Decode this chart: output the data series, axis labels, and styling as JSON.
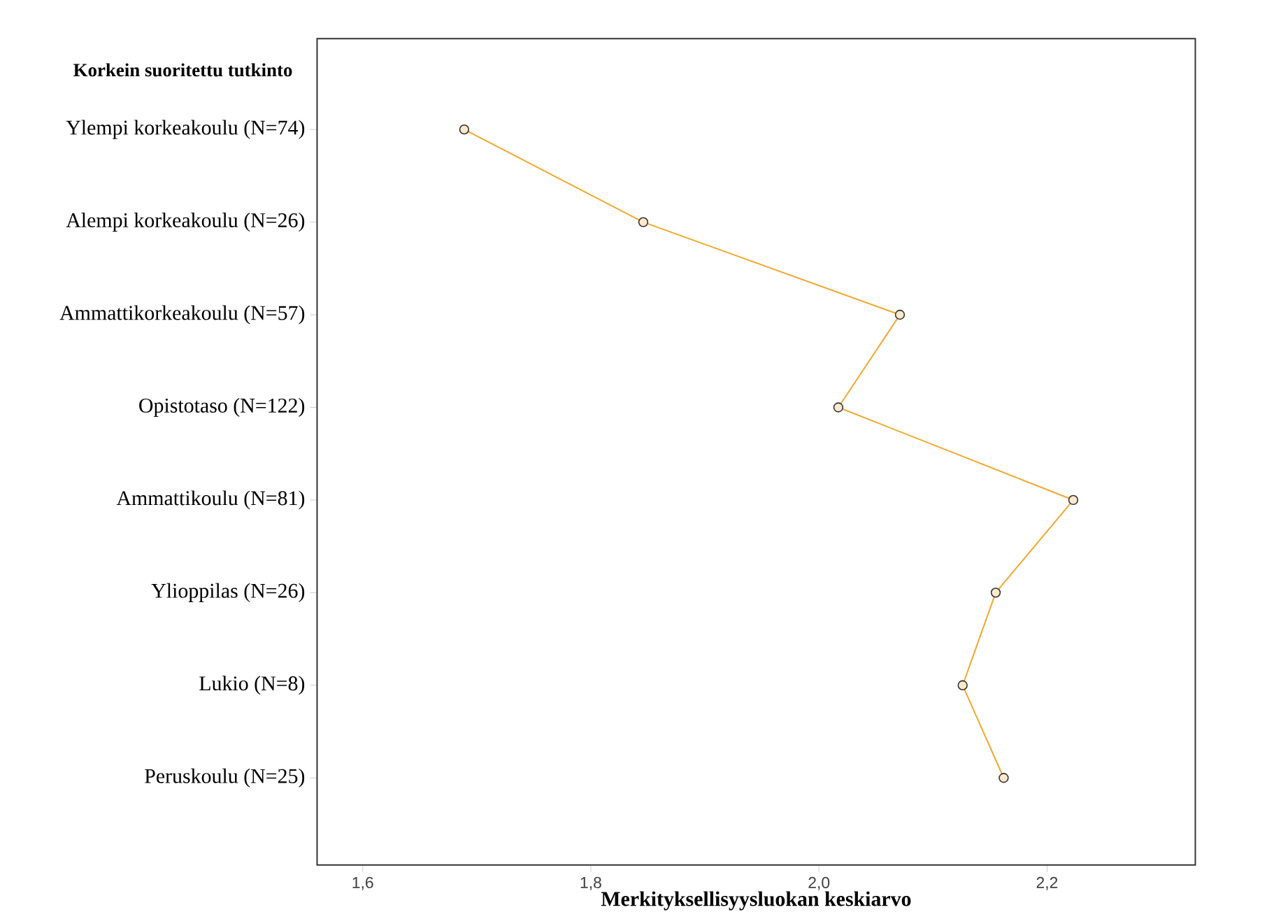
{
  "chart_data": {
    "type": "line",
    "orientation": "horizontal",
    "ylabel": "Korkein suoritettu tutkinto",
    "xlabel": "Merkityksellisyysluokan keskiarvo",
    "categories": [
      "Ylempi korkeakoulu (N=74)",
      "Alempi korkeakoulu (N=26)",
      "Ammattikorkeakoulu (N=57)",
      "Opistotaso (N=122)",
      "Ammattikoulu (N=81)",
      "Ylioppilas (N=26)",
      "Lukio (N=8)",
      "Peruskoulu (N=25)"
    ],
    "values": [
      1.689,
      1.846,
      2.071,
      2.017,
      2.223,
      2.155,
      2.126,
      2.162
    ],
    "color": "#f0a830",
    "marker": "circle",
    "xlim": [
      1.56,
      2.33
    ],
    "xticks": [
      {
        "value": 1.6,
        "label": "1,6"
      },
      {
        "value": 1.8,
        "label": "1,8"
      },
      {
        "value": 2.0,
        "label": "2,0"
      },
      {
        "value": 2.2,
        "label": "2,2"
      }
    ]
  }
}
